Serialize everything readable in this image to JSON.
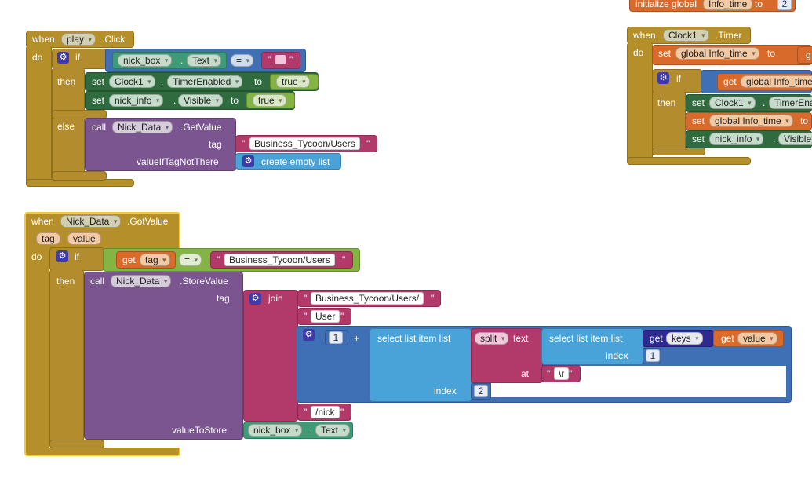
{
  "colors": {
    "event": "#b5902a",
    "control": "#b38c2d",
    "component_method": "#7a5590",
    "set_component": "#2f6b3e",
    "text": "#b23a6a",
    "logic": "#84b543",
    "list": "#4aa3d8",
    "math": "#3f6fb5",
    "variable": "#d86a2b",
    "dict": "#2e2a8f",
    "selection": "#f6c833"
  },
  "kw": {
    "when": "when",
    "do": "do",
    "if": "if",
    "then": "then",
    "else": "else",
    "set": "set",
    "to": "to",
    "call": "call",
    "get": "get",
    "eq": "=",
    "quote": "\"",
    "join": "join",
    "index": "index",
    "at": "at",
    "text": "text",
    "list": "list",
    "tag": "tag",
    "value_param": "value",
    "plus": "+",
    "gear": "⚙"
  },
  "block1": {
    "component": "play",
    "event": ".Click",
    "cond_comp": "nick_box",
    "cond_prop": "Text",
    "cond_op": "=",
    "then1_comp": "Clock1",
    "then1_prop": "TimerEnabled",
    "then1_val": "true",
    "then2_comp": "nick_info",
    "then2_prop": "Visible",
    "then2_val": "true",
    "else_comp": "Nick_Data",
    "else_method": ".GetValue",
    "tag_label": "tag",
    "tag_value": "Business_Tycoon/Users",
    "vitn_label": "valueIfTagNotThere",
    "vitn_value": "create empty list"
  },
  "block2": {
    "init_label": "initialize global",
    "init_name": "Info_time",
    "init_to": "to",
    "init_value": "2",
    "component": "Clock1",
    "event": ".Timer",
    "set_var": "global Info_time",
    "set_val_partial": "g",
    "if_get": "global Info_time",
    "then1_comp": "Clock1",
    "then1_prop": "TimerEna",
    "then2_var": "global Info_time",
    "then3_comp": "nick_info",
    "then3_prop": "Visible"
  },
  "block3": {
    "component": "Nick_Data",
    "event": ".GotValue",
    "param1": "tag",
    "param2": "value",
    "cond_get": "tag",
    "cond_op": "=",
    "cond_str": "Business_Tycoon/Users",
    "call_comp": "Nick_Data",
    "call_method": ".StoreValue",
    "tag_label": "tag",
    "join1": "Business_Tycoon/Users/",
    "join2": "User",
    "num1": "1",
    "sli1": "select list item  list",
    "split_label": "split",
    "sli2": "select list item  list",
    "keys_label": "keys",
    "value_label": "value",
    "index_num": "1",
    "at_str": "\\r",
    "index2_num": "2",
    "join4": "/nick",
    "vts_label": "valueToStore",
    "vts_comp": "nick_box",
    "vts_prop": "Text"
  }
}
